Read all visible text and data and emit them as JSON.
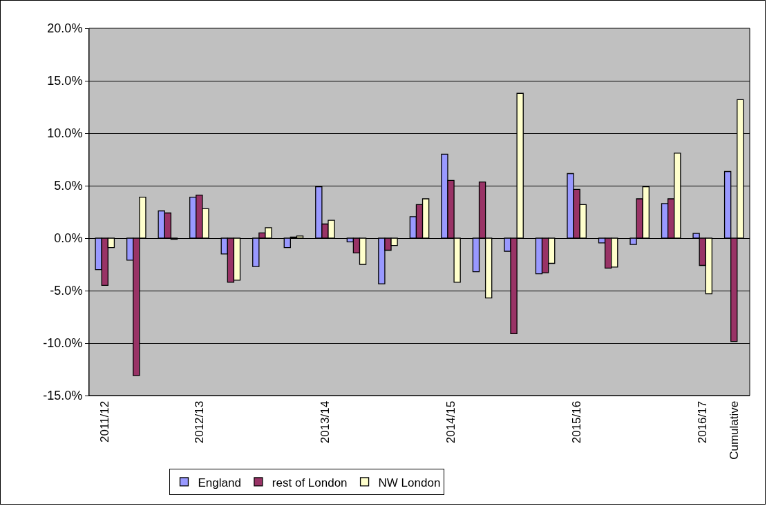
{
  "chart_data": {
    "type": "bar",
    "categories": [
      "2011/12",
      null,
      null,
      "2012/13",
      null,
      null,
      null,
      "2013/14",
      null,
      null,
      null,
      "2014/15",
      null,
      null,
      null,
      "2015/16",
      null,
      null,
      null,
      "2016/17",
      "Cumulative"
    ],
    "series": [
      {
        "name": "England",
        "color": "#9999ff",
        "values": [
          -3.0,
          -2.1,
          2.6,
          3.9,
          -1.5,
          -2.7,
          -0.9,
          4.9,
          -0.35,
          -4.35,
          2.05,
          8.0,
          -3.2,
          -1.25,
          -3.4,
          6.15,
          -0.45,
          -0.6,
          3.3,
          0.45,
          6.35
        ]
      },
      {
        "name": "rest of London",
        "color": "#993366",
        "values": [
          -4.5,
          -13.1,
          2.4,
          4.1,
          -4.2,
          0.5,
          0.1,
          1.35,
          -1.4,
          -1.15,
          3.2,
          5.5,
          5.35,
          -9.1,
          -3.3,
          4.65,
          -2.85,
          3.75,
          3.75,
          -2.6,
          -9.85
        ]
      },
      {
        "name": "NW London",
        "color": "#ffffcc",
        "values": [
          -0.9,
          3.9,
          -0.1,
          2.8,
          -4.0,
          1.0,
          0.2,
          1.7,
          -2.5,
          -0.7,
          3.75,
          -4.2,
          -5.7,
          13.8,
          -2.4,
          3.2,
          -2.75,
          4.9,
          8.1,
          -5.3,
          13.2
        ]
      }
    ],
    "ylim": [
      -15,
      20
    ],
    "yticks": [
      {
        "value": -15,
        "label": "-15.0%"
      },
      {
        "value": -10,
        "label": "-10.0%"
      },
      {
        "value": -5,
        "label": "-5.0%"
      },
      {
        "value": 0,
        "label": "0.0%"
      },
      {
        "value": 5,
        "label": "5.0%"
      },
      {
        "value": 10,
        "label": "10.0%"
      },
      {
        "value": 15,
        "label": "15.0%"
      },
      {
        "value": 20,
        "label": "20.0%"
      }
    ],
    "grid": "y",
    "legend": "bottom"
  }
}
